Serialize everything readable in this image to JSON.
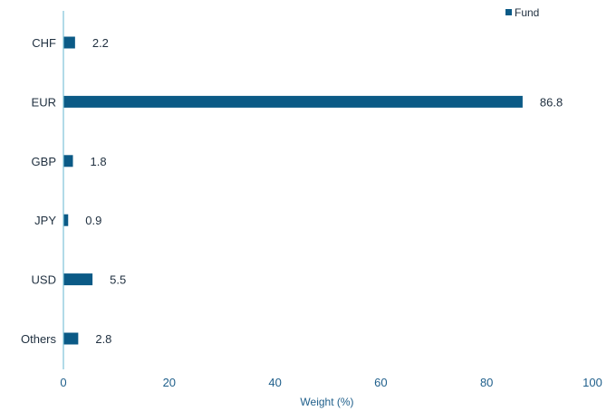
{
  "chart_data": {
    "type": "bar",
    "orientation": "horizontal",
    "categories": [
      "CHF",
      "EUR",
      "GBP",
      "JPY",
      "USD",
      "Others"
    ],
    "series": [
      {
        "name": "Fund",
        "values": [
          2.2,
          86.8,
          1.8,
          0.9,
          5.5,
          2.8
        ]
      }
    ],
    "value_labels": [
      "2.2",
      "86.8",
      "1.8",
      "0.9",
      "5.5",
      "2.8"
    ],
    "xlabel": "Weight (%)",
    "xlim": [
      0,
      100
    ],
    "x_ticks": [
      0,
      20,
      40,
      60,
      80,
      100
    ],
    "x_tick_labels": [
      "0",
      "20",
      "40",
      "60",
      "80",
      "100"
    ],
    "legend": {
      "label": "Fund",
      "position": "top-right"
    },
    "grid": false,
    "colors": {
      "bar": "#0b5a86",
      "axis": "#7fc3d8",
      "tick_text": "#1f5f8b"
    }
  }
}
